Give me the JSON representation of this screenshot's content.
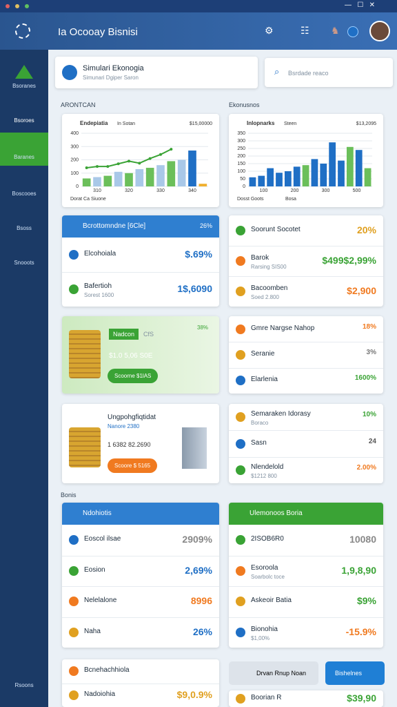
{
  "window": {
    "title": "Ia Ocooay Bisnisi"
  },
  "sidebar": {
    "items": [
      "Bsoranes",
      "Bsoroes",
      "Baranes",
      "Boscooes",
      "Bsoss",
      "Snooots"
    ],
    "footer": "Rsoons"
  },
  "header_card": {
    "title": "Simulari Ekonogia",
    "subtitle": "Simunari Dgiper Saron"
  },
  "search": {
    "placeholder": "Bsrdade reaco"
  },
  "sections": [
    "ARONTCAN",
    "Ekonusnos",
    "Bonis"
  ],
  "charts": [
    {
      "type": "bar",
      "title": "Endepiatia",
      "subtitle": "In Sotan",
      "headline": "$15,00000",
      "legend": [
        "Dorat Ca Siuone"
      ],
      "ylim": [
        0,
        400
      ],
      "yticks": [
        0,
        100,
        200,
        300,
        400
      ],
      "xlabels": [
        "310",
        "320",
        "330",
        "340"
      ],
      "values": [
        60,
        70,
        80,
        110,
        100,
        130,
        140,
        160,
        190,
        200,
        270,
        20
      ],
      "colors": [
        "#6bbf5a",
        "#a9c8e8",
        "#6bbf5a",
        "#a9c8e8",
        "#6bbf5a",
        "#a9c8e8",
        "#6bbf5a",
        "#a9c8e8",
        "#6bbf5a",
        "#a9c8e8",
        "#1f6fc5",
        "#f0b030"
      ],
      "line": {
        "color": "#3aa335",
        "values": [
          140,
          150,
          150,
          170,
          190,
          175,
          210,
          240,
          280
        ]
      }
    },
    {
      "type": "bar",
      "title": "Inlopnarks",
      "subtitle": "Steen",
      "headline": "$13,2095",
      "legend": [
        "Dosst Goots",
        "Bosa"
      ],
      "ylim": [
        0,
        350
      ],
      "yticks": [
        0,
        50,
        100,
        150,
        200,
        250,
        300,
        350
      ],
      "xlabels": [
        "100",
        "200",
        "300",
        "500"
      ],
      "values": [
        60,
        70,
        120,
        90,
        100,
        130,
        140,
        180,
        150,
        290,
        170,
        260,
        240,
        120
      ],
      "colors": [
        "#1f6fc5",
        "#1f6fc5",
        "#1f6fc5",
        "#1f6fc5",
        "#1f6fc5",
        "#1f6fc5",
        "#6bbf5a",
        "#1f6fc5",
        "#1f6fc5",
        "#1f6fc5",
        "#1f6fc5",
        "#6bbf5a",
        "#1f6fc5",
        "#6bbf5a"
      ]
    }
  ],
  "cards": [
    {
      "header": "Bcrottomndne [6Cle]",
      "header_value": "26%",
      "rows": [
        {
          "label": "Elcohoiala",
          "value": "$.69%"
        },
        {
          "label": "Bafertioh",
          "sub": "Sorest 1600",
          "value": "1$,6090"
        }
      ]
    },
    {
      "rows": [
        {
          "label": "Soorunt Socotet",
          "value": "20%"
        },
        {
          "label": "Barok",
          "sub": "Rarsing SIS00",
          "value": "$499$2,99%"
        },
        {
          "label": "Bacoomben",
          "sub": "Soed 2.800",
          "value": "$2,900"
        }
      ]
    },
    {
      "rows": [
        {
          "label": "Gmre Nargse Nahop",
          "value": "18%"
        },
        {
          "label": "Seranie",
          "value": "3%"
        },
        {
          "label": "Elarlenia",
          "value": "1600%"
        }
      ]
    },
    {
      "rows": [
        {
          "label": "Semaraken Idorasy",
          "sub": "Boraco",
          "value": "10%"
        },
        {
          "label": "Sasn",
          "value": "24"
        },
        {
          "label": "Nlendelold",
          "sub": "$1212 800",
          "value": "2.00%"
        }
      ]
    },
    {
      "header": "Ndohiotis",
      "rows": [
        {
          "label": "Eoscol ilsae",
          "value": "2909%"
        },
        {
          "label": "Eosion",
          "value": "2,69%"
        },
        {
          "label": "Nelelalone",
          "value": "8996"
        },
        {
          "label": "Naha",
          "value": "26%"
        }
      ]
    },
    {
      "header": "Ulemonoos Boria",
      "rows": [
        {
          "label": "2ISOB6R0",
          "value": "10080"
        },
        {
          "label": "Esoroola",
          "sub": "Soarbolc toce",
          "value": "1,9,8,90"
        },
        {
          "label": "Askeoir Batia",
          "value": "$9%"
        },
        {
          "label": "Bionohia",
          "sub": "$1,00%",
          "value": "-15.9%"
        }
      ]
    },
    {
      "rows": [
        {
          "label": "Bcnehachhiola"
        },
        {
          "label": "Nadoiohia",
          "value": "$9,0.9%"
        }
      ]
    },
    {
      "rows": [
        {
          "label": "Boorian R",
          "value": "$39,90"
        }
      ]
    }
  ],
  "promos": [
    {
      "badge": "Nadcon",
      "tag": "CfS",
      "value": "38%",
      "amount": "$1.0 5,06 S0E",
      "button": "Scoorne $1lAS"
    },
    {
      "title": "Ungpohgfiqtidat",
      "sub": "Nanore 2380",
      "amount": "1 6382 82.2690",
      "button": "Scoore $ 5165"
    }
  ],
  "buttons": [
    "Drvan Rnup Noan",
    "Bishelnes"
  ]
}
